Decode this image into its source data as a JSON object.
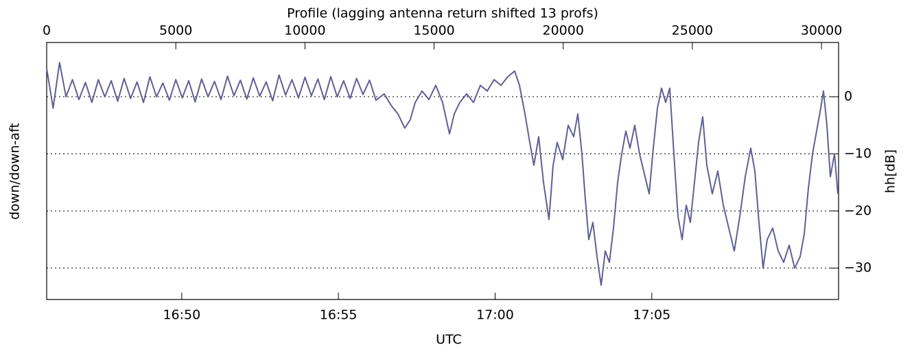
{
  "chart_data": {
    "type": "line",
    "xlabel": "Profile (lagging antenna return shifted 13 profs)",
    "x2label": "UTC",
    "ylabel": "down/down-aft",
    "y_right_label": "hh[dB]",
    "xlim": [
      0,
      30662
    ],
    "xticks": [
      0,
      5000,
      10000,
      15000,
      20000,
      25000,
      30000
    ],
    "x2lim": [
      1005.69,
      1030.96
    ],
    "x2ticks": [
      {
        "value": 1010,
        "label": "16:50"
      },
      {
        "value": 1015,
        "label": "16:55"
      },
      {
        "value": 1020,
        "label": "17:00"
      },
      {
        "value": 1025,
        "label": "17:05"
      }
    ],
    "ylim": [
      -35.5,
      9.5
    ],
    "yticks": [
      0,
      {
        "value": -10,
        "label": "−10"
      },
      {
        "value": -20,
        "label": "−20"
      },
      {
        "value": -30,
        "label": "−30"
      }
    ],
    "grid": true,
    "series": [
      {
        "color": "#5f5f94",
        "x": [
          0,
          250,
          500,
          750,
          1000,
          1250,
          1500,
          1750,
          2000,
          2250,
          2500,
          2750,
          3000,
          3250,
          3500,
          3750,
          4000,
          4250,
          4500,
          4750,
          5000,
          5250,
          5500,
          5750,
          6000,
          6250,
          6500,
          6750,
          7000,
          7250,
          7500,
          7750,
          8000,
          8250,
          8500,
          8750,
          9000,
          9250,
          9500,
          9750,
          10000,
          10250,
          10500,
          10750,
          11000,
          11250,
          11500,
          11750,
          12000,
          12250,
          12500,
          12750,
          13070,
          13335,
          13600,
          13866,
          14080,
          14268,
          14534,
          14800,
          15066,
          15331,
          15597,
          15783,
          15996,
          16261,
          16527,
          16792,
          17058,
          17324,
          17590,
          17855,
          18121,
          18307,
          18519,
          18705,
          18864,
          19050,
          19236,
          19449,
          19608,
          19768,
          19980,
          20193,
          20405,
          20565,
          20724,
          20857,
          20990,
          21150,
          21309,
          21469,
          21628,
          21787,
          21947,
          22106,
          22266,
          22425,
          22585,
          22771,
          22957,
          23169,
          23329,
          23488,
          23648,
          23807,
          23966,
          24126,
          24285,
          24445,
          24604,
          24763,
          24923,
          25082,
          25242,
          25401,
          25561,
          25773,
          25986,
          26198,
          26410,
          26623,
          26836,
          27048,
          27261,
          27420,
          27580,
          27739,
          27899,
          28111,
          28324,
          28537,
          28749,
          28962,
          29174,
          29333,
          29493,
          29652,
          29812,
          29971,
          30077,
          30210,
          30343,
          30502,
          30635
        ],
        "values": [
          5,
          -2,
          6,
          0,
          3,
          -0.5,
          2.5,
          -1,
          3,
          0,
          2.8,
          -0.8,
          3.2,
          -0.3,
          2.6,
          -1,
          3.5,
          0,
          2.4,
          -0.6,
          3,
          -0.2,
          2.8,
          -0.9,
          3.1,
          0,
          2.7,
          -0.5,
          3.6,
          0.2,
          2.9,
          -0.4,
          3.3,
          0.1,
          2.6,
          -0.7,
          3.8,
          0.3,
          3,
          -0.2,
          3.4,
          0.2,
          3.1,
          -0.5,
          3.5,
          0,
          2.8,
          -0.3,
          3.2,
          0.4,
          2.9,
          -0.6,
          0.5,
          -1.5,
          -3,
          -5.5,
          -4,
          -1,
          1,
          -0.5,
          2,
          -1,
          -6.5,
          -3,
          -1,
          0.5,
          -1,
          2,
          1,
          3,
          2,
          3.5,
          4.5,
          2,
          -3,
          -8,
          -12,
          -7,
          -15,
          -21.5,
          -12,
          -8,
          -11,
          -5,
          -7,
          -3,
          -10,
          -18,
          -25,
          -22,
          -28,
          -33,
          -27,
          -29,
          -23,
          -15,
          -10,
          -6,
          -9,
          -5,
          -10,
          -14,
          -17,
          -9,
          -2,
          1.5,
          -1,
          1.5,
          -10,
          -21,
          -25,
          -19,
          -22,
          -15,
          -8,
          -3.5,
          -12,
          -17,
          -13,
          -19,
          -23,
          -27,
          -21,
          -14,
          -9,
          -13,
          -22,
          -30,
          -25,
          -23,
          -27,
          -29,
          -26,
          -30,
          -28,
          -24,
          -16,
          -10,
          -6,
          -2,
          1,
          -5,
          -14,
          -10,
          -17
        ]
      }
    ]
  }
}
